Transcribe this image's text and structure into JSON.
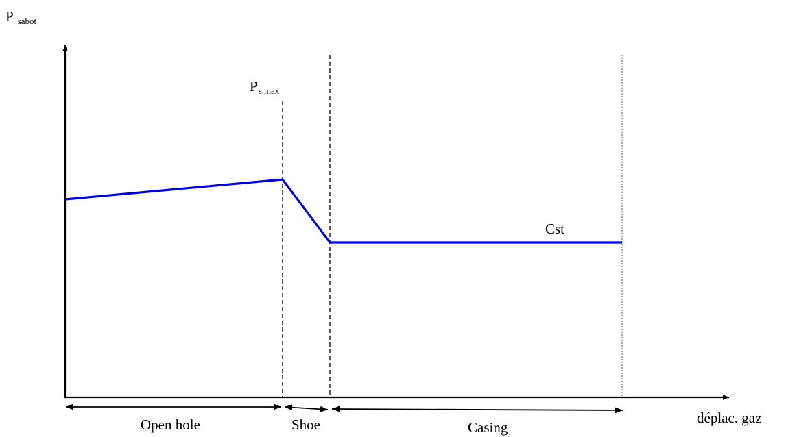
{
  "labels": {
    "y_axis_main": "P",
    "y_axis_sub": "sabot",
    "peak_main": "P",
    "peak_sub": "s.max",
    "constant": "Cst",
    "x_axis": "déplac. gaz"
  },
  "segments": [
    {
      "id": "open-hole",
      "label": "Open hole"
    },
    {
      "id": "shoe",
      "label": "Shoe"
    },
    {
      "id": "casing",
      "label": "Casing"
    }
  ],
  "colors": {
    "curve": "#0000e6",
    "axis": "#000000"
  }
}
